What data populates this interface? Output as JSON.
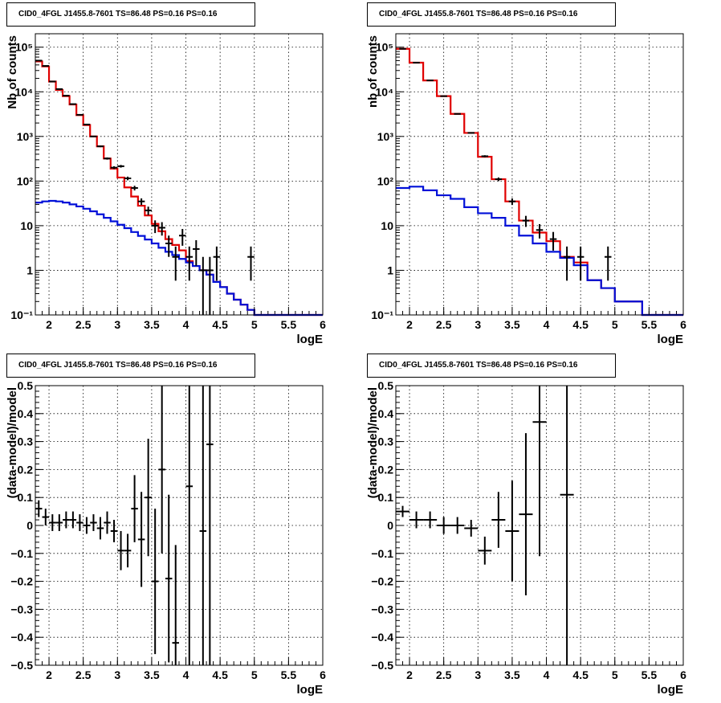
{
  "colors": {
    "data": "#000000",
    "total_model": "#e00000",
    "component_model": "#0010d8",
    "grid": "#000000"
  },
  "chart_data": [
    {
      "type": "histogram",
      "title": "CID0_4FGL J1455.8-7601 TS=86.48 PS=0.16 PS=0.16",
      "xlabel": "logE",
      "ylabel": "Nb of counts",
      "xlim": [
        1.8,
        6
      ],
      "ylim": [
        0.1,
        200000
      ],
      "yscale": "log",
      "grid": true,
      "x_ticks": [
        2,
        2.5,
        3,
        3.5,
        4,
        4.5,
        5,
        5.5,
        6
      ],
      "x_tick_labels": [
        "2",
        "2.5",
        "3",
        "3.5",
        "4",
        "4.5",
        "5",
        "5.5",
        "6"
      ],
      "y_ticks": [
        0.1,
        1,
        10,
        100,
        1000,
        10000,
        100000
      ],
      "y_tick_labels": [
        "10⁻¹",
        "1",
        "10",
        "10²",
        "10³",
        "10⁴",
        "10⁵"
      ],
      "bin_edges": [
        1.8,
        1.9,
        2.0,
        2.1,
        2.2,
        2.3,
        2.4,
        2.5,
        2.6,
        2.7,
        2.8,
        2.9,
        3.0,
        3.1,
        3.2,
        3.3,
        3.4,
        3.5,
        3.6,
        3.7,
        3.8,
        3.9,
        4.0,
        4.1,
        4.2,
        4.3,
        4.4,
        4.5,
        4.6,
        4.7,
        4.8,
        4.9,
        5.0,
        5.1,
        5.2,
        5.3,
        5.4,
        5.5,
        5.6,
        5.7,
        5.8,
        5.9,
        6.0
      ],
      "series": [
        {
          "name": "",
          "role": "model_total",
          "color": "#e00000",
          "values": [
            48000,
            37000,
            17000,
            11000,
            8000,
            5200,
            3000,
            1800,
            1000,
            600,
            320,
            190,
            120,
            72,
            45,
            28,
            17,
            11,
            7.5,
            5,
            3.7,
            2.8,
            1.6,
            1.25,
            1.0,
            0.8,
            0.55,
            0.42,
            0.3,
            0.22,
            0.17,
            0.13,
            0.1,
            0.1,
            0.1,
            0.1,
            0.1,
            0.1,
            0.1,
            0.1,
            0.1,
            0.1
          ]
        },
        {
          "name": "",
          "role": "model_component",
          "color": "#0010d8",
          "values": [
            33,
            35,
            36,
            35,
            33,
            30,
            27,
            24,
            21,
            18,
            15,
            12.5,
            10.5,
            8.8,
            7.2,
            5.9,
            4.9,
            4.0,
            3.2,
            2.6,
            2.2,
            1.8,
            1.5,
            1.25,
            1.0,
            0.8,
            0.55,
            0.42,
            0.3,
            0.22,
            0.17,
            0.13,
            0.1,
            0.1,
            0.1,
            0.1,
            0.1,
            0.1,
            0.1,
            0.1,
            0.1,
            0.1
          ]
        }
      ],
      "points": [
        {
          "x": 1.85,
          "y": 50000
        },
        {
          "x": 1.95,
          "y": 38000
        },
        {
          "x": 2.05,
          "y": 17000
        },
        {
          "x": 2.15,
          "y": 11500
        },
        {
          "x": 2.25,
          "y": 8200
        },
        {
          "x": 2.35,
          "y": 5300
        },
        {
          "x": 2.45,
          "y": 3050
        },
        {
          "x": 2.55,
          "y": 1850
        },
        {
          "x": 2.65,
          "y": 1000
        },
        {
          "x": 2.75,
          "y": 600
        },
        {
          "x": 2.85,
          "y": 320
        },
        {
          "x": 2.95,
          "y": 200
        },
        {
          "x": 3.05,
          "y": 215
        },
        {
          "x": 3.15,
          "y": 115
        },
        {
          "x": 3.25,
          "y": 70
        },
        {
          "x": 3.35,
          "y": 35
        },
        {
          "x": 3.45,
          "y": 22
        },
        {
          "x": 3.55,
          "y": 10
        },
        {
          "x": 3.65,
          "y": 9
        },
        {
          "x": 3.75,
          "y": 4
        },
        {
          "x": 3.85,
          "y": 2
        },
        {
          "x": 3.95,
          "y": 6
        },
        {
          "x": 4.05,
          "y": 2
        },
        {
          "x": 4.15,
          "y": 3
        },
        {
          "x": 4.25,
          "y": 1
        },
        {
          "x": 4.35,
          "y": 1
        },
        {
          "x": 4.45,
          "y": 2
        },
        {
          "x": 4.95,
          "y": 2
        }
      ]
    },
    {
      "type": "histogram",
      "title": "CID0_4FGL J1455.8-7601 TS=86.48 PS=0.16 PS=0.16",
      "xlabel": "logE",
      "ylabel": "nb of counts",
      "xlim": [
        1.8,
        6
      ],
      "ylim": [
        0.1,
        200000
      ],
      "yscale": "log",
      "grid": true,
      "x_ticks": [
        2,
        2.5,
        3,
        3.5,
        4,
        4.5,
        5,
        5.5,
        6
      ],
      "x_tick_labels": [
        "2",
        "2.5",
        "3",
        "3.5",
        "4",
        "4.5",
        "5",
        "5.5",
        "6"
      ],
      "y_ticks": [
        0.1,
        1,
        10,
        100,
        1000,
        10000,
        100000
      ],
      "y_tick_labels": [
        "10⁻¹",
        "1",
        "10",
        "10²",
        "10³",
        "10⁴",
        "10⁵"
      ],
      "bin_edges": [
        1.8,
        2.0,
        2.2,
        2.4,
        2.6,
        2.8,
        3.0,
        3.2,
        3.4,
        3.6,
        3.8,
        4.0,
        4.2,
        4.4,
        4.6,
        4.8,
        5.0,
        5.2,
        5.4,
        5.6,
        5.8,
        6.0
      ],
      "series": [
        {
          "name": "",
          "role": "model_total",
          "color": "#e00000",
          "values": [
            92000,
            45000,
            18000,
            8000,
            3200,
            1200,
            350,
            110,
            35,
            13,
            7,
            4.5,
            2,
            1.5,
            0.6,
            0.4,
            0.2,
            0.2,
            0.1,
            0.1,
            0.1
          ]
        },
        {
          "name": "",
          "role": "model_component",
          "color": "#0010d8",
          "values": [
            70,
            75,
            62,
            48,
            40,
            26,
            19,
            15,
            10,
            6,
            4,
            2.6,
            1.9,
            1.3,
            0.6,
            0.4,
            0.2,
            0.2,
            0.1,
            0.1,
            0.1
          ]
        }
      ],
      "points": [
        {
          "x": 1.9,
          "y": 92000
        },
        {
          "x": 2.1,
          "y": 45000
        },
        {
          "x": 2.3,
          "y": 18000
        },
        {
          "x": 2.5,
          "y": 8000
        },
        {
          "x": 2.7,
          "y": 3200
        },
        {
          "x": 2.9,
          "y": 1200
        },
        {
          "x": 3.1,
          "y": 360
        },
        {
          "x": 3.3,
          "y": 110
        },
        {
          "x": 3.5,
          "y": 35
        },
        {
          "x": 3.7,
          "y": 13
        },
        {
          "x": 3.9,
          "y": 8
        },
        {
          "x": 4.1,
          "y": 5
        },
        {
          "x": 4.3,
          "y": 2
        },
        {
          "x": 4.5,
          "y": 2
        },
        {
          "x": 4.9,
          "y": 2
        }
      ]
    },
    {
      "type": "scatter",
      "title": "CID0_4FGL J1455.8-7601 TS=86.48 PS=0.16 PS=0.16",
      "xlabel": "logE",
      "ylabel": "(data-model)/model",
      "xlim": [
        1.8,
        6
      ],
      "ylim": [
        -0.5,
        0.5
      ],
      "grid": true,
      "x_ticks": [
        2,
        2.5,
        3,
        3.5,
        4,
        4.5,
        5,
        5.5,
        6
      ],
      "x_tick_labels": [
        "2",
        "2.5",
        "3",
        "3.5",
        "4",
        "4.5",
        "5",
        "5.5",
        "6"
      ],
      "y_ticks": [
        -0.5,
        -0.4,
        -0.3,
        -0.2,
        -0.1,
        0,
        0.1,
        0.2,
        0.3,
        0.4,
        0.5
      ],
      "y_tick_labels": [
        "−0.5",
        "−0.4",
        "−0.3",
        "−0.2",
        "−0.1",
        "0",
        "0.1",
        "0.2",
        "0.3",
        "0.4",
        "0.5"
      ],
      "points": [
        {
          "x": 1.85,
          "y": 0.06,
          "err": 0.03,
          "xerr": 0.05
        },
        {
          "x": 1.95,
          "y": 0.03,
          "err": 0.03,
          "xerr": 0.05
        },
        {
          "x": 2.05,
          "y": 0.01,
          "err": 0.03,
          "xerr": 0.05
        },
        {
          "x": 2.15,
          "y": 0.01,
          "err": 0.03,
          "xerr": 0.05
        },
        {
          "x": 2.25,
          "y": 0.02,
          "err": 0.03,
          "xerr": 0.05
        },
        {
          "x": 2.35,
          "y": 0.02,
          "err": 0.03,
          "xerr": 0.05
        },
        {
          "x": 2.45,
          "y": 0.01,
          "err": 0.03,
          "xerr": 0.05
        },
        {
          "x": 2.55,
          "y": 0.0,
          "err": 0.03,
          "xerr": 0.05
        },
        {
          "x": 2.65,
          "y": 0.01,
          "err": 0.03,
          "xerr": 0.05
        },
        {
          "x": 2.75,
          "y": -0.01,
          "err": 0.04,
          "xerr": 0.05
        },
        {
          "x": 2.85,
          "y": 0.01,
          "err": 0.04,
          "xerr": 0.05
        },
        {
          "x": 2.95,
          "y": -0.02,
          "err": 0.04,
          "xerr": 0.05
        },
        {
          "x": 3.05,
          "y": -0.09,
          "err": 0.07,
          "xerr": 0.05
        },
        {
          "x": 3.15,
          "y": -0.09,
          "err": 0.06,
          "xerr": 0.05
        },
        {
          "x": 3.25,
          "y": 0.06,
          "err": 0.12,
          "xerr": 0.05
        },
        {
          "x": 3.35,
          "y": -0.05,
          "err": 0.17,
          "xerr": 0.05
        },
        {
          "x": 3.45,
          "y": 0.1,
          "err": 0.21,
          "xerr": 0.05
        },
        {
          "x": 3.55,
          "y": -0.2,
          "err": 0.26,
          "xerr": 0.05
        },
        {
          "x": 3.65,
          "y": 0.2,
          "err": 0.3,
          "xerr": 0.05
        },
        {
          "x": 3.75,
          "y": -0.19,
          "err": 0.3,
          "xerr": 0.05
        },
        {
          "x": 3.85,
          "y": -0.42,
          "err": 0.35,
          "xerr": 0.05
        },
        {
          "x": 4.05,
          "y": 0.14,
          "err": 0.7,
          "xerr": 0.05
        },
        {
          "x": 4.25,
          "y": -0.02,
          "err": 0.7,
          "xerr": 0.05
        },
        {
          "x": 4.35,
          "y": 0.29,
          "err": 0.9,
          "xerr": 0.05
        }
      ]
    },
    {
      "type": "scatter",
      "title": "CID0_4FGL J1455.8-7601 TS=86.48 PS=0.16 PS=0.16",
      "xlabel": "logE",
      "ylabel": "(data-model)/model",
      "xlim": [
        1.8,
        6
      ],
      "ylim": [
        -0.5,
        0.5
      ],
      "grid": true,
      "x_ticks": [
        2,
        2.5,
        3,
        3.5,
        4,
        4.5,
        5,
        5.5,
        6
      ],
      "x_tick_labels": [
        "2",
        "2.5",
        "3",
        "3.5",
        "4",
        "4.5",
        "5",
        "5.5",
        "6"
      ],
      "y_ticks": [
        -0.5,
        -0.4,
        -0.3,
        -0.2,
        -0.1,
        0,
        0.1,
        0.2,
        0.3,
        0.4,
        0.5
      ],
      "y_tick_labels": [
        "−0.5",
        "−0.4",
        "−0.3",
        "−0.2",
        "−0.1",
        "0",
        "0.1",
        "0.2",
        "0.3",
        "0.4",
        "0.5"
      ],
      "points": [
        {
          "x": 1.9,
          "y": 0.05,
          "err": 0.02,
          "xerr": 0.1
        },
        {
          "x": 2.1,
          "y": 0.02,
          "err": 0.03,
          "xerr": 0.1
        },
        {
          "x": 2.3,
          "y": 0.02,
          "err": 0.03,
          "xerr": 0.1
        },
        {
          "x": 2.5,
          "y": 0.0,
          "err": 0.03,
          "xerr": 0.1
        },
        {
          "x": 2.7,
          "y": 0.0,
          "err": 0.03,
          "xerr": 0.1
        },
        {
          "x": 2.9,
          "y": -0.01,
          "err": 0.03,
          "xerr": 0.1
        },
        {
          "x": 3.1,
          "y": -0.09,
          "err": 0.05,
          "xerr": 0.1
        },
        {
          "x": 3.3,
          "y": 0.02,
          "err": 0.1,
          "xerr": 0.1
        },
        {
          "x": 3.5,
          "y": -0.02,
          "err": 0.18,
          "xerr": 0.1
        },
        {
          "x": 3.7,
          "y": 0.04,
          "err": 0.29,
          "xerr": 0.1
        },
        {
          "x": 3.9,
          "y": 0.37,
          "err": 0.48,
          "xerr": 0.1
        },
        {
          "x": 4.3,
          "y": 0.11,
          "err": 0.9,
          "xerr": 0.1
        }
      ]
    }
  ]
}
